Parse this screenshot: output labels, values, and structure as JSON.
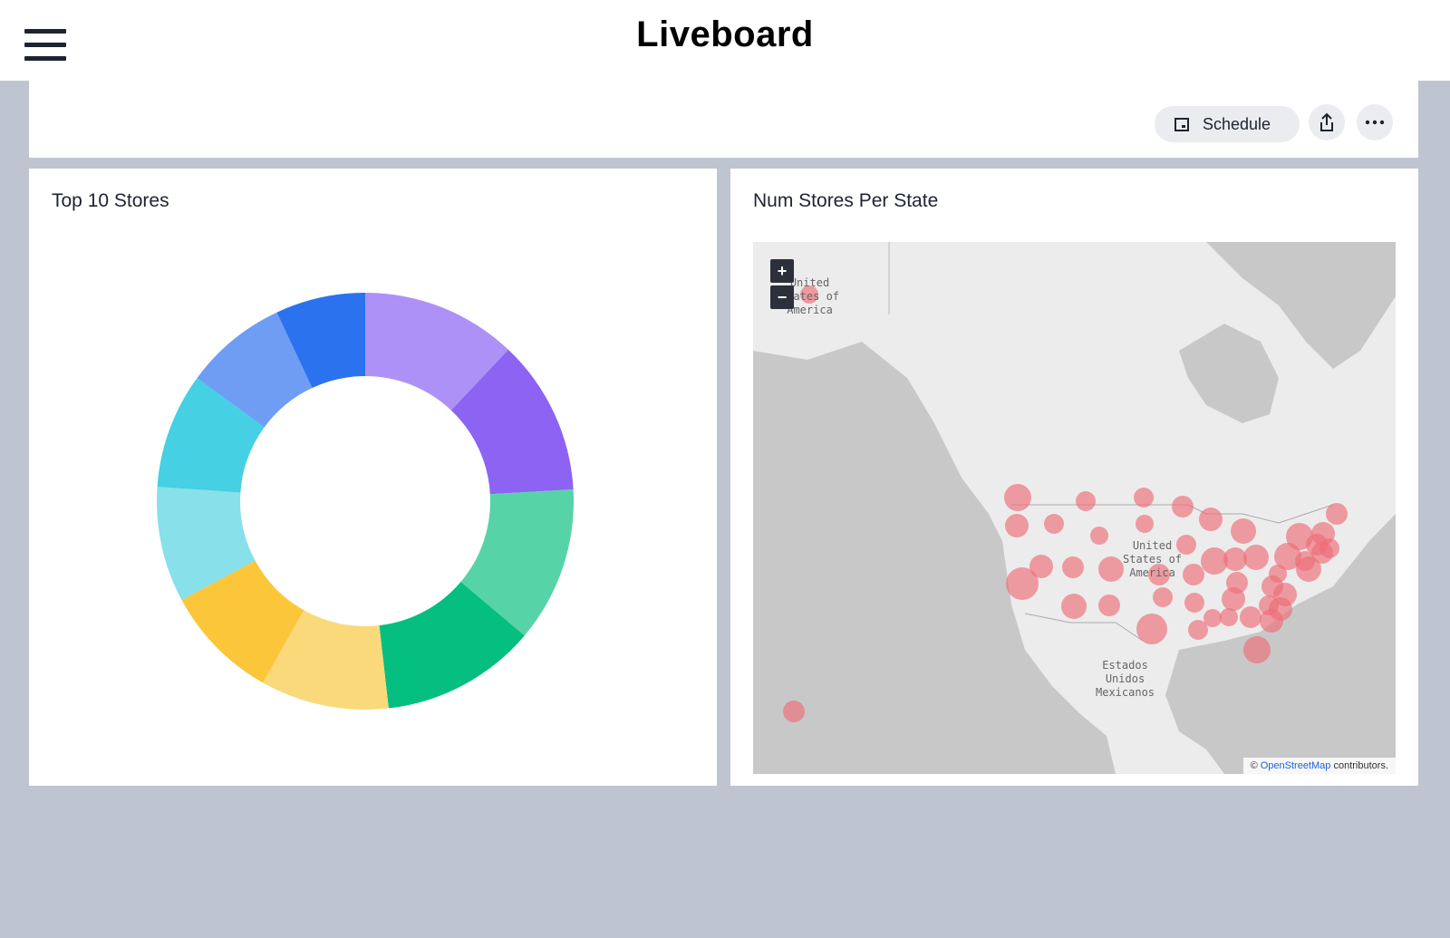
{
  "header": {
    "title": "Liveboard",
    "menu_icon": "hamburger-menu-icon"
  },
  "toolbar": {
    "schedule_label": "Schedule",
    "schedule_icon": "calendar-icon",
    "share_icon": "share-icon",
    "more_icon": "more-horizontal-icon"
  },
  "cards": {
    "top_stores": {
      "title": "Top 10 Stores"
    },
    "stores_per_state": {
      "title": "Num Stores Per State",
      "zoom_in": "+",
      "zoom_out": "−",
      "map_labels": {
        "alaska": "United\nStates of\nAmerica",
        "usa": "United\nStates of\nAmerica",
        "mexico": "Estados\nUnidos\nMexicanos"
      },
      "attribution_prefix": "©",
      "attribution_link": "OpenStreetMap",
      "attribution_suffix": "contributors."
    }
  },
  "chart_data": {
    "type": "pie",
    "variant": "donut",
    "values": [
      12.1,
      12.1,
      12.1,
      12.1,
      10.0,
      9.0,
      9.0,
      9.0,
      8.0,
      7.0
    ],
    "colors": [
      "#ad91f7",
      "#8c63f2",
      "#57d3a8",
      "#04bf7f",
      "#fad97a",
      "#fbc63a",
      "#87e0ea",
      "#45d0e3",
      "#6f9df4",
      "#2b73ee"
    ]
  },
  "map_data": {
    "color": "#ee6d78"
  },
  "colors": {
    "background": "#bfc5d0",
    "card": "#ffffff",
    "button": "#eaecef",
    "link": "#1e62d4"
  }
}
